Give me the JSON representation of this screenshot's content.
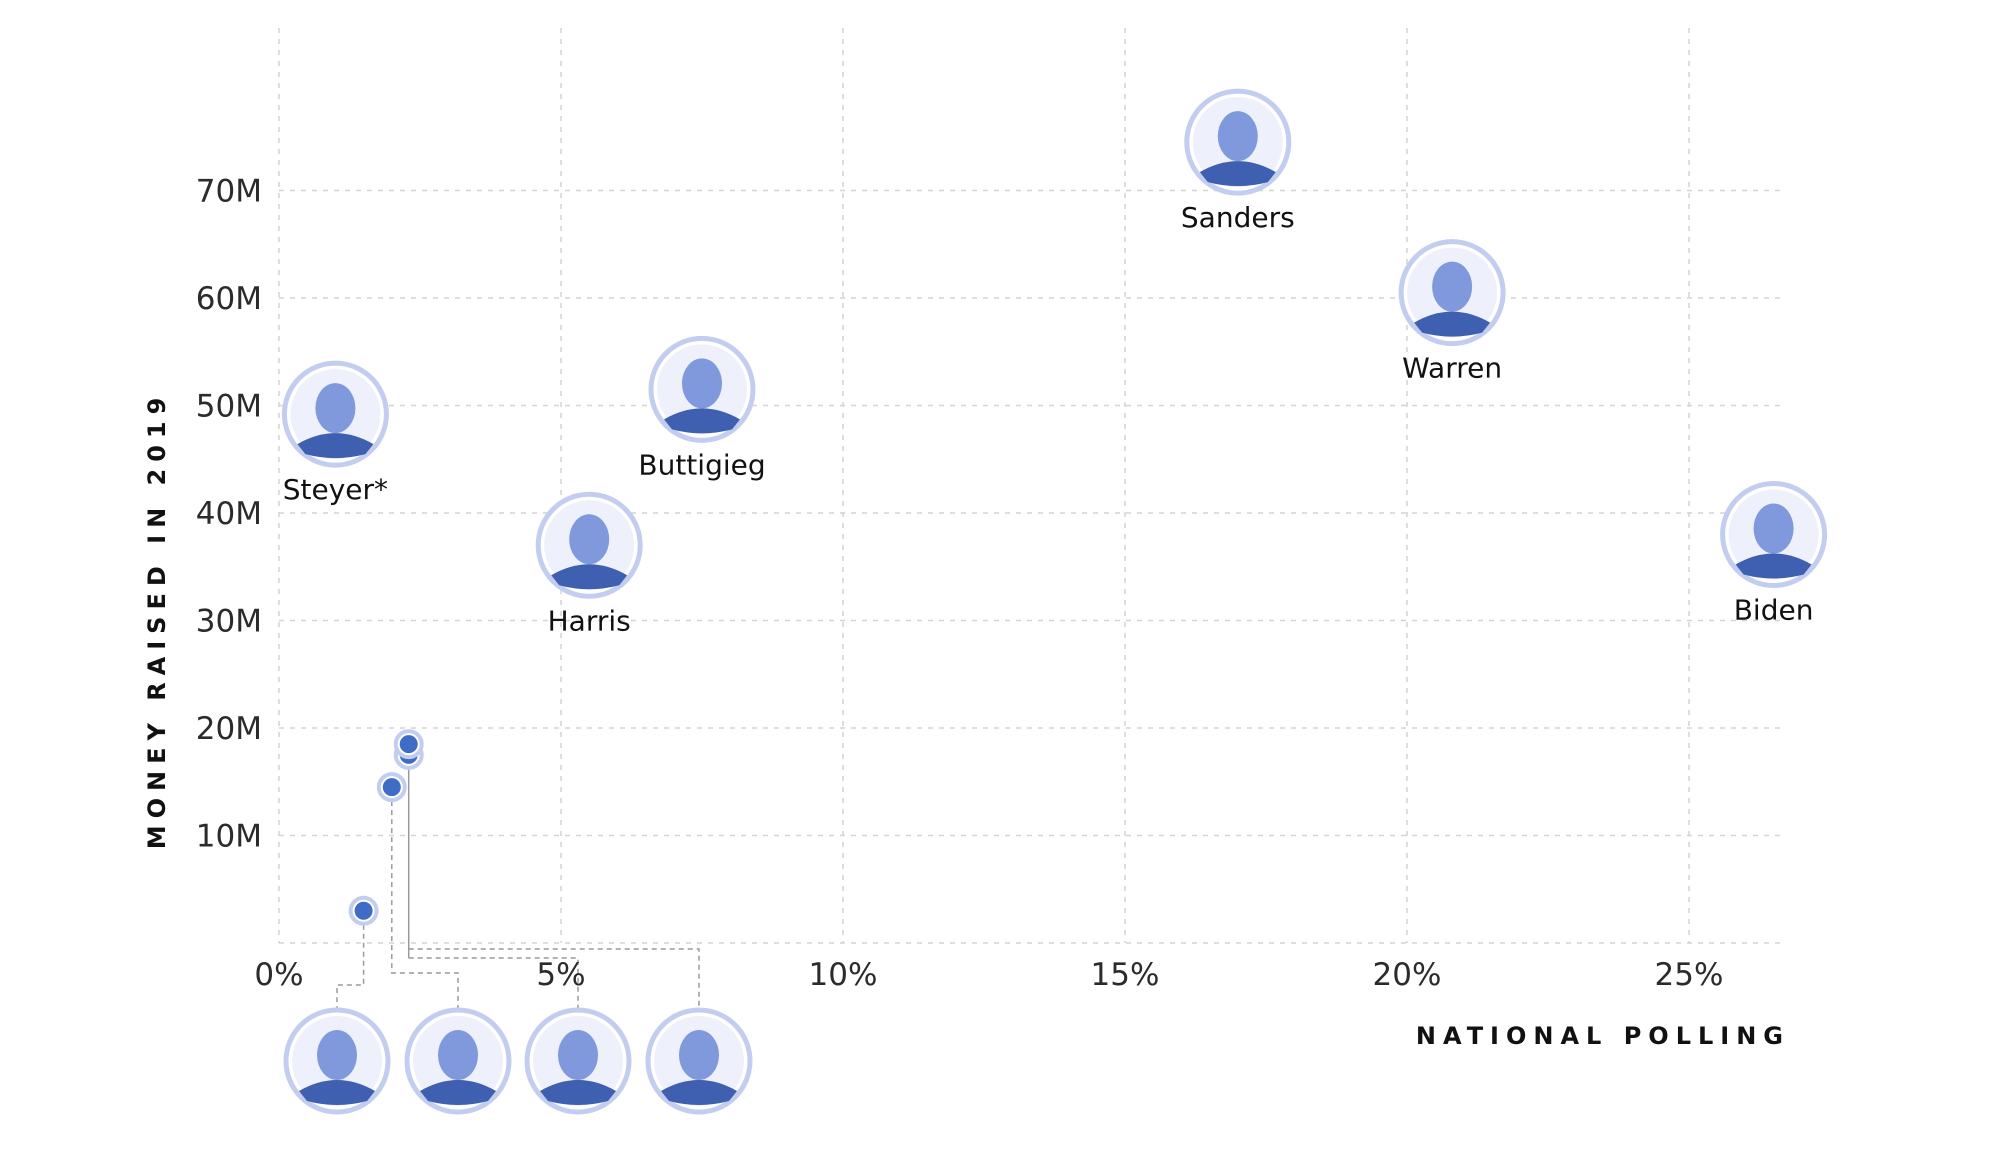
{
  "chart_data": {
    "type": "scatter",
    "title": "",
    "xlabel": "NATIONAL POLLING",
    "ylabel": "MONEY RAISED IN 2019",
    "xlim": [
      0,
      27
    ],
    "ylim": [
      0,
      80
    ],
    "x_ticks": [
      {
        "value": 0,
        "label": "0%"
      },
      {
        "value": 5,
        "label": "5%"
      },
      {
        "value": 10,
        "label": "10%"
      },
      {
        "value": 15,
        "label": "15%"
      },
      {
        "value": 20,
        "label": "20%"
      },
      {
        "value": 25,
        "label": "25%"
      }
    ],
    "y_ticks": [
      {
        "value": 10,
        "label": "10M"
      },
      {
        "value": 20,
        "label": "20M"
      },
      {
        "value": 30,
        "label": "30M"
      },
      {
        "value": 40,
        "label": "40M"
      },
      {
        "value": 50,
        "label": "50M"
      },
      {
        "value": 60,
        "label": "60M"
      },
      {
        "value": 70,
        "label": "70M"
      }
    ],
    "grid": true,
    "labeled_points": [
      {
        "name": "Sanders",
        "x": 17.0,
        "y": 74.5
      },
      {
        "name": "Warren",
        "x": 20.8,
        "y": 60.5
      },
      {
        "name": "Steyer*",
        "x": 1.0,
        "y": 49.2
      },
      {
        "name": "Buttigieg",
        "x": 7.5,
        "y": 51.5
      },
      {
        "name": "Harris",
        "x": 5.5,
        "y": 37.0
      },
      {
        "name": "Biden",
        "x": 26.5,
        "y": 38.0
      }
    ],
    "small_points": [
      {
        "x": 1.5,
        "y": 3.0
      },
      {
        "x": 2.0,
        "y": 14.5
      },
      {
        "x": 2.3,
        "y": 17.5
      },
      {
        "x": 2.3,
        "y": 18.5
      }
    ],
    "footer_photos": 4
  },
  "colors": {
    "point": "#3f6cc4",
    "photo_ring": "#c3cdf0",
    "photo_fill": "#7f99dc"
  }
}
